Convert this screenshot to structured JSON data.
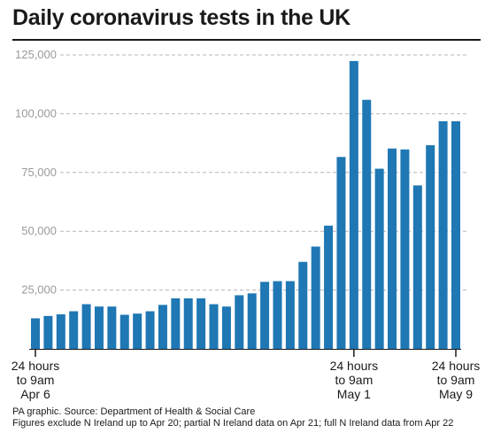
{
  "chart_data": {
    "type": "bar",
    "title": "Daily coronavirus tests in the UK",
    "x_label_groups": [
      {
        "index": 0,
        "lines": [
          "24 hours",
          "to 9am",
          "Apr 6"
        ]
      },
      {
        "index": 25,
        "lines": [
          "24 hours",
          "to 9am",
          "May 1"
        ]
      },
      {
        "index": 33,
        "lines": [
          "24 hours",
          "to 9am",
          "May 9"
        ]
      }
    ],
    "y_ticks": [
      {
        "value": 25000,
        "label": "25,000"
      },
      {
        "value": 50000,
        "label": "50,000"
      },
      {
        "value": 75000,
        "label": "75,000"
      },
      {
        "value": 100000,
        "label": "100,000"
      },
      {
        "value": 125000,
        "label": "125,000"
      }
    ],
    "ylim": [
      0,
      125000
    ],
    "grid": true,
    "bar_color": "#1f77b4",
    "values": [
      13000,
      14000,
      14700,
      16000,
      19000,
      18000,
      18000,
      14500,
      15000,
      16000,
      18700,
      21500,
      21500,
      21500,
      19000,
      18000,
      22800,
      23600,
      28500,
      28800,
      28800,
      37000,
      43500,
      52400,
      81600,
      122400,
      105900,
      76600,
      85200,
      84800,
      69500,
      86600,
      96800,
      96800
    ]
  },
  "source": {
    "line1": "PA graphic. Source: Department of Health & Social Care",
    "line2": "Figures exclude N Ireland up to Apr 20; partial N Ireland data on Apr 21; full N Ireland data from Apr 22"
  }
}
